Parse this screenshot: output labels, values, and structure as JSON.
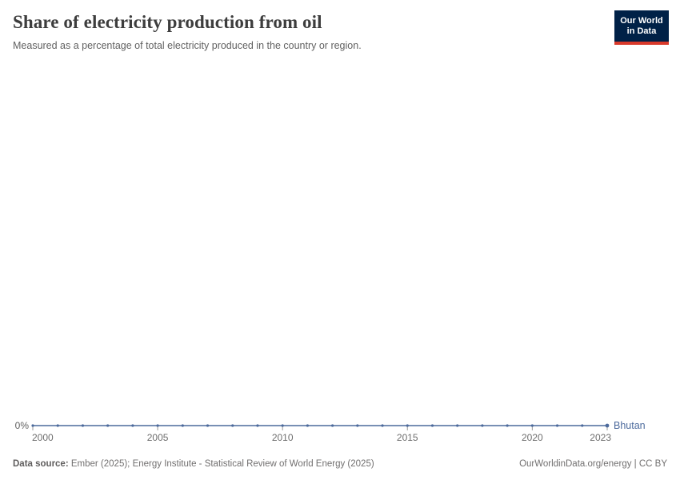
{
  "header": {
    "title": "Share of electricity production from oil",
    "subtitle": "Measured as a percentage of total electricity produced in the country or region.",
    "logo_text": "Our World\nin Data"
  },
  "chart_data": {
    "type": "line",
    "title": "Share of electricity production from oil",
    "xlabel": "",
    "ylabel": "",
    "x": [
      2000,
      2001,
      2002,
      2003,
      2004,
      2005,
      2006,
      2007,
      2008,
      2009,
      2010,
      2011,
      2012,
      2013,
      2014,
      2015,
      2016,
      2017,
      2018,
      2019,
      2020,
      2021,
      2022,
      2023
    ],
    "series": [
      {
        "name": "Bhutan",
        "color": "#4c6a9c",
        "values": [
          0,
          0,
          0,
          0,
          0,
          0,
          0,
          0,
          0,
          0,
          0,
          0,
          0,
          0,
          0,
          0,
          0,
          0,
          0,
          0,
          0,
          0,
          0,
          0
        ]
      }
    ],
    "x_tick_labels": [
      "2000",
      "2005",
      "2010",
      "2015",
      "2020",
      "2023"
    ],
    "x_ticks": [
      2000,
      2005,
      2010,
      2015,
      2020,
      2023
    ],
    "y_tick_labels": [
      "0%"
    ],
    "xlim": [
      2000,
      2023
    ],
    "ylim": [
      0,
      0
    ],
    "grid": false,
    "legend_position": "end-of-line",
    "marker": "dot"
  },
  "footer": {
    "datasource_label": "Data source:",
    "datasource_text": " Ember (2025); Energy Institute - Statistical Review of World Energy (2025)",
    "link_text": "OurWorldinData.org/energy | CC BY"
  },
  "colors": {
    "line": "#4c6a9c",
    "axis_text": "#6e6e6e",
    "tick_mark": "#999999",
    "logo_bg": "#002147",
    "logo_bar": "#d93a2b"
  }
}
